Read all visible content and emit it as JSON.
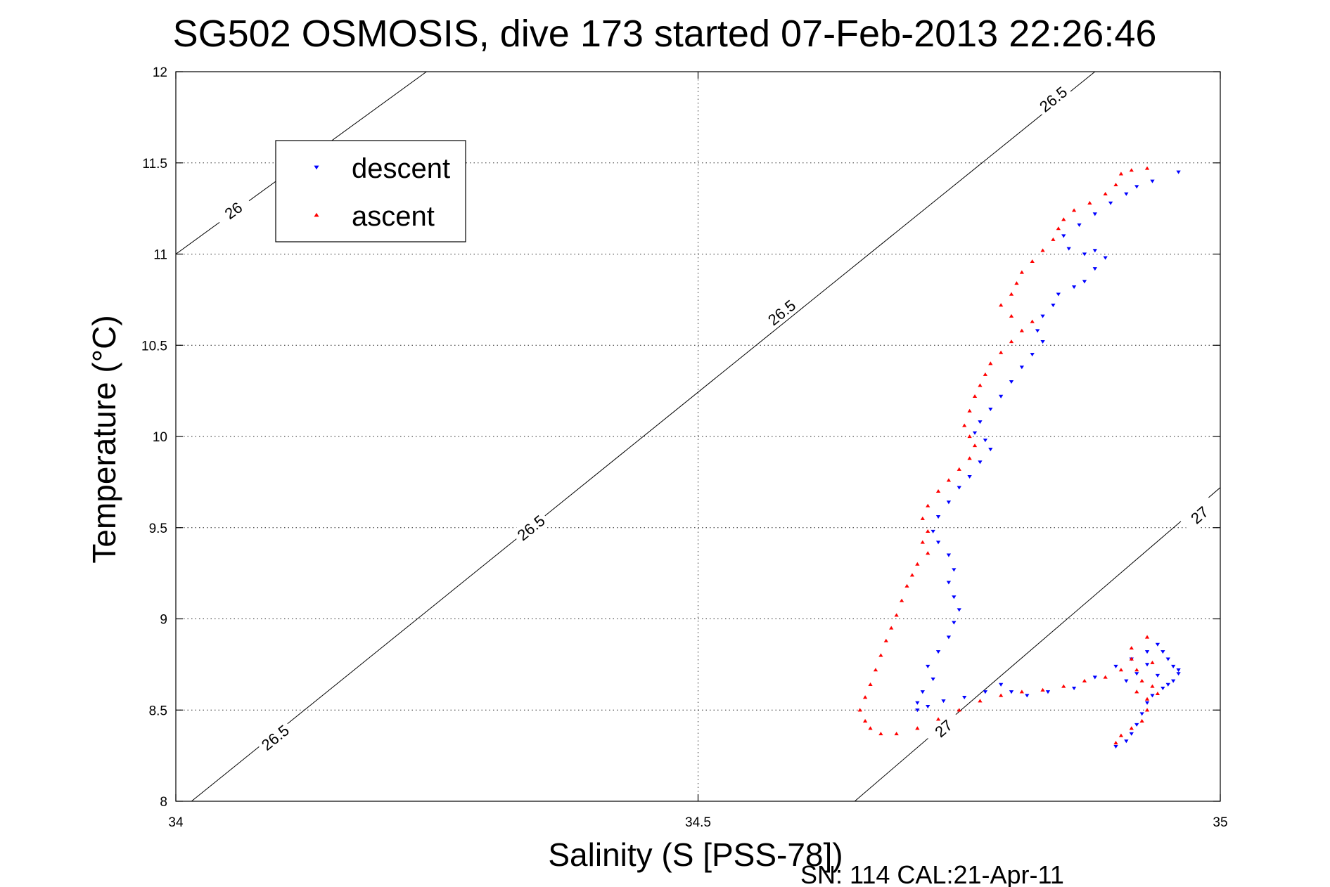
{
  "chart_data": {
    "type": "scatter",
    "title": "SG502 OSMOSIS, dive 173 started 07-Feb-2013 22:26:46",
    "xlabel": "Salinity (S [PSS-78])",
    "ylabel": "Temperature (°C)",
    "xlim": [
      34,
      35
    ],
    "ylim": [
      8,
      12
    ],
    "xticks": [
      "34",
      "34.5",
      "35"
    ],
    "yticks": [
      "8",
      "8.5",
      "9",
      "9.5",
      "10",
      "10.5",
      "11",
      "11.5",
      "12"
    ],
    "grid": true,
    "legend_position": "top-left",
    "footer": "SN: 114  CAL:21-Apr-11",
    "contours": [
      {
        "label": "26",
        "points": [
          [
            34.0,
            11.0
          ],
          [
            34.24,
            12.0
          ]
        ],
        "labels_at": [
          [
            34.055,
            11.24
          ]
        ]
      },
      {
        "label": "26.5",
        "points": [
          [
            34.015,
            8.0
          ],
          [
            34.88,
            12.0
          ]
        ],
        "labels_at": [
          [
            34.095,
            8.35
          ],
          [
            34.34,
            9.5
          ],
          [
            34.58,
            10.68
          ],
          [
            34.84,
            11.85
          ]
        ]
      },
      {
        "label": "27",
        "points": [
          [
            34.65,
            8.0
          ],
          [
            35.0,
            9.72
          ]
        ],
        "labels_at": [
          [
            34.735,
            8.4
          ],
          [
            34.98,
            9.57
          ]
        ]
      }
    ],
    "series": [
      {
        "name": "descent",
        "color": "#0000ff",
        "marker": "triangle-down",
        "points": [
          [
            34.96,
            11.45
          ],
          [
            34.935,
            11.4
          ],
          [
            34.92,
            11.37
          ],
          [
            34.91,
            11.33
          ],
          [
            34.895,
            11.28
          ],
          [
            34.88,
            11.22
          ],
          [
            34.865,
            11.16
          ],
          [
            34.85,
            11.1
          ],
          [
            34.855,
            11.03
          ],
          [
            34.87,
            11.0
          ],
          [
            34.88,
            11.02
          ],
          [
            34.89,
            10.98
          ],
          [
            34.88,
            10.92
          ],
          [
            34.87,
            10.85
          ],
          [
            34.86,
            10.82
          ],
          [
            34.845,
            10.78
          ],
          [
            34.84,
            10.72
          ],
          [
            34.83,
            10.66
          ],
          [
            34.825,
            10.58
          ],
          [
            34.83,
            10.52
          ],
          [
            34.82,
            10.45
          ],
          [
            34.81,
            10.38
          ],
          [
            34.8,
            10.3
          ],
          [
            34.79,
            10.22
          ],
          [
            34.78,
            10.15
          ],
          [
            34.77,
            10.08
          ],
          [
            34.765,
            10.02
          ],
          [
            34.775,
            9.98
          ],
          [
            34.78,
            9.93
          ],
          [
            34.77,
            9.86
          ],
          [
            34.76,
            9.78
          ],
          [
            34.75,
            9.72
          ],
          [
            34.74,
            9.64
          ],
          [
            34.73,
            9.56
          ],
          [
            34.725,
            9.48
          ],
          [
            34.73,
            9.42
          ],
          [
            34.74,
            9.35
          ],
          [
            34.745,
            9.27
          ],
          [
            34.74,
            9.2
          ],
          [
            34.745,
            9.12
          ],
          [
            34.75,
            9.05
          ],
          [
            34.745,
            8.98
          ],
          [
            34.74,
            8.9
          ],
          [
            34.73,
            8.82
          ],
          [
            34.72,
            8.74
          ],
          [
            34.725,
            8.67
          ],
          [
            34.715,
            8.6
          ],
          [
            34.71,
            8.54
          ],
          [
            34.71,
            8.5
          ],
          [
            34.72,
            8.52
          ],
          [
            34.735,
            8.55
          ],
          [
            34.755,
            8.57
          ],
          [
            34.775,
            8.6
          ],
          [
            34.79,
            8.64
          ],
          [
            34.8,
            8.6
          ],
          [
            34.815,
            8.58
          ],
          [
            34.835,
            8.6
          ],
          [
            34.86,
            8.62
          ],
          [
            34.88,
            8.68
          ],
          [
            34.9,
            8.74
          ],
          [
            34.915,
            8.78
          ],
          [
            34.93,
            8.82
          ],
          [
            34.94,
            8.86
          ],
          [
            34.945,
            8.82
          ],
          [
            34.95,
            8.78
          ],
          [
            34.955,
            8.74
          ],
          [
            34.96,
            8.7
          ],
          [
            34.955,
            8.66
          ],
          [
            34.945,
            8.62
          ],
          [
            34.935,
            8.58
          ],
          [
            34.93,
            8.54
          ],
          [
            34.925,
            8.48
          ],
          [
            34.92,
            8.42
          ],
          [
            34.915,
            8.37
          ],
          [
            34.91,
            8.33
          ],
          [
            34.9,
            8.3
          ],
          [
            34.91,
            8.66
          ],
          [
            34.92,
            8.7
          ],
          [
            34.93,
            8.75
          ],
          [
            34.94,
            8.69
          ],
          [
            34.95,
            8.64
          ],
          [
            34.96,
            8.72
          ]
        ]
      },
      {
        "name": "ascent",
        "color": "#ff0000",
        "marker": "triangle-up",
        "points": [
          [
            34.93,
            11.47
          ],
          [
            34.915,
            11.46
          ],
          [
            34.905,
            11.44
          ],
          [
            34.9,
            11.38
          ],
          [
            34.89,
            11.33
          ],
          [
            34.875,
            11.28
          ],
          [
            34.86,
            11.24
          ],
          [
            34.85,
            11.19
          ],
          [
            34.845,
            11.14
          ],
          [
            34.84,
            11.08
          ],
          [
            34.83,
            11.02
          ],
          [
            34.82,
            10.96
          ],
          [
            34.81,
            10.9
          ],
          [
            34.805,
            10.84
          ],
          [
            34.8,
            10.78
          ],
          [
            34.79,
            10.72
          ],
          [
            34.8,
            10.66
          ],
          [
            34.82,
            10.63
          ],
          [
            34.81,
            10.58
          ],
          [
            34.8,
            10.52
          ],
          [
            34.79,
            10.46
          ],
          [
            34.78,
            10.4
          ],
          [
            34.775,
            10.34
          ],
          [
            34.77,
            10.28
          ],
          [
            34.765,
            10.22
          ],
          [
            34.76,
            10.14
          ],
          [
            34.755,
            10.06
          ],
          [
            34.76,
            10.0
          ],
          [
            34.765,
            9.95
          ],
          [
            34.76,
            9.88
          ],
          [
            34.75,
            9.82
          ],
          [
            34.74,
            9.76
          ],
          [
            34.73,
            9.7
          ],
          [
            34.72,
            9.62
          ],
          [
            34.715,
            9.55
          ],
          [
            34.72,
            9.48
          ],
          [
            34.715,
            9.42
          ],
          [
            34.72,
            9.36
          ],
          [
            34.71,
            9.3
          ],
          [
            34.705,
            9.24
          ],
          [
            34.7,
            9.18
          ],
          [
            34.695,
            9.1
          ],
          [
            34.69,
            9.02
          ],
          [
            34.685,
            8.95
          ],
          [
            34.68,
            8.88
          ],
          [
            34.675,
            8.8
          ],
          [
            34.67,
            8.72
          ],
          [
            34.665,
            8.64
          ],
          [
            34.66,
            8.57
          ],
          [
            34.655,
            8.5
          ],
          [
            34.66,
            8.44
          ],
          [
            34.665,
            8.4
          ],
          [
            34.675,
            8.37
          ],
          [
            34.69,
            8.37
          ],
          [
            34.71,
            8.4
          ],
          [
            34.73,
            8.45
          ],
          [
            34.75,
            8.5
          ],
          [
            34.77,
            8.55
          ],
          [
            34.79,
            8.58
          ],
          [
            34.81,
            8.6
          ],
          [
            34.83,
            8.61
          ],
          [
            34.85,
            8.63
          ],
          [
            34.87,
            8.66
          ],
          [
            34.89,
            8.68
          ],
          [
            34.905,
            8.72
          ],
          [
            34.915,
            8.78
          ],
          [
            34.92,
            8.72
          ],
          [
            34.925,
            8.66
          ],
          [
            34.92,
            8.6
          ],
          [
            34.93,
            8.56
          ],
          [
            34.94,
            8.59
          ],
          [
            34.935,
            8.63
          ],
          [
            34.93,
            8.5
          ],
          [
            34.925,
            8.44
          ],
          [
            34.915,
            8.4
          ],
          [
            34.905,
            8.36
          ],
          [
            34.9,
            8.32
          ],
          [
            34.93,
            8.9
          ],
          [
            34.915,
            8.84
          ],
          [
            34.935,
            8.76
          ]
        ]
      }
    ]
  }
}
